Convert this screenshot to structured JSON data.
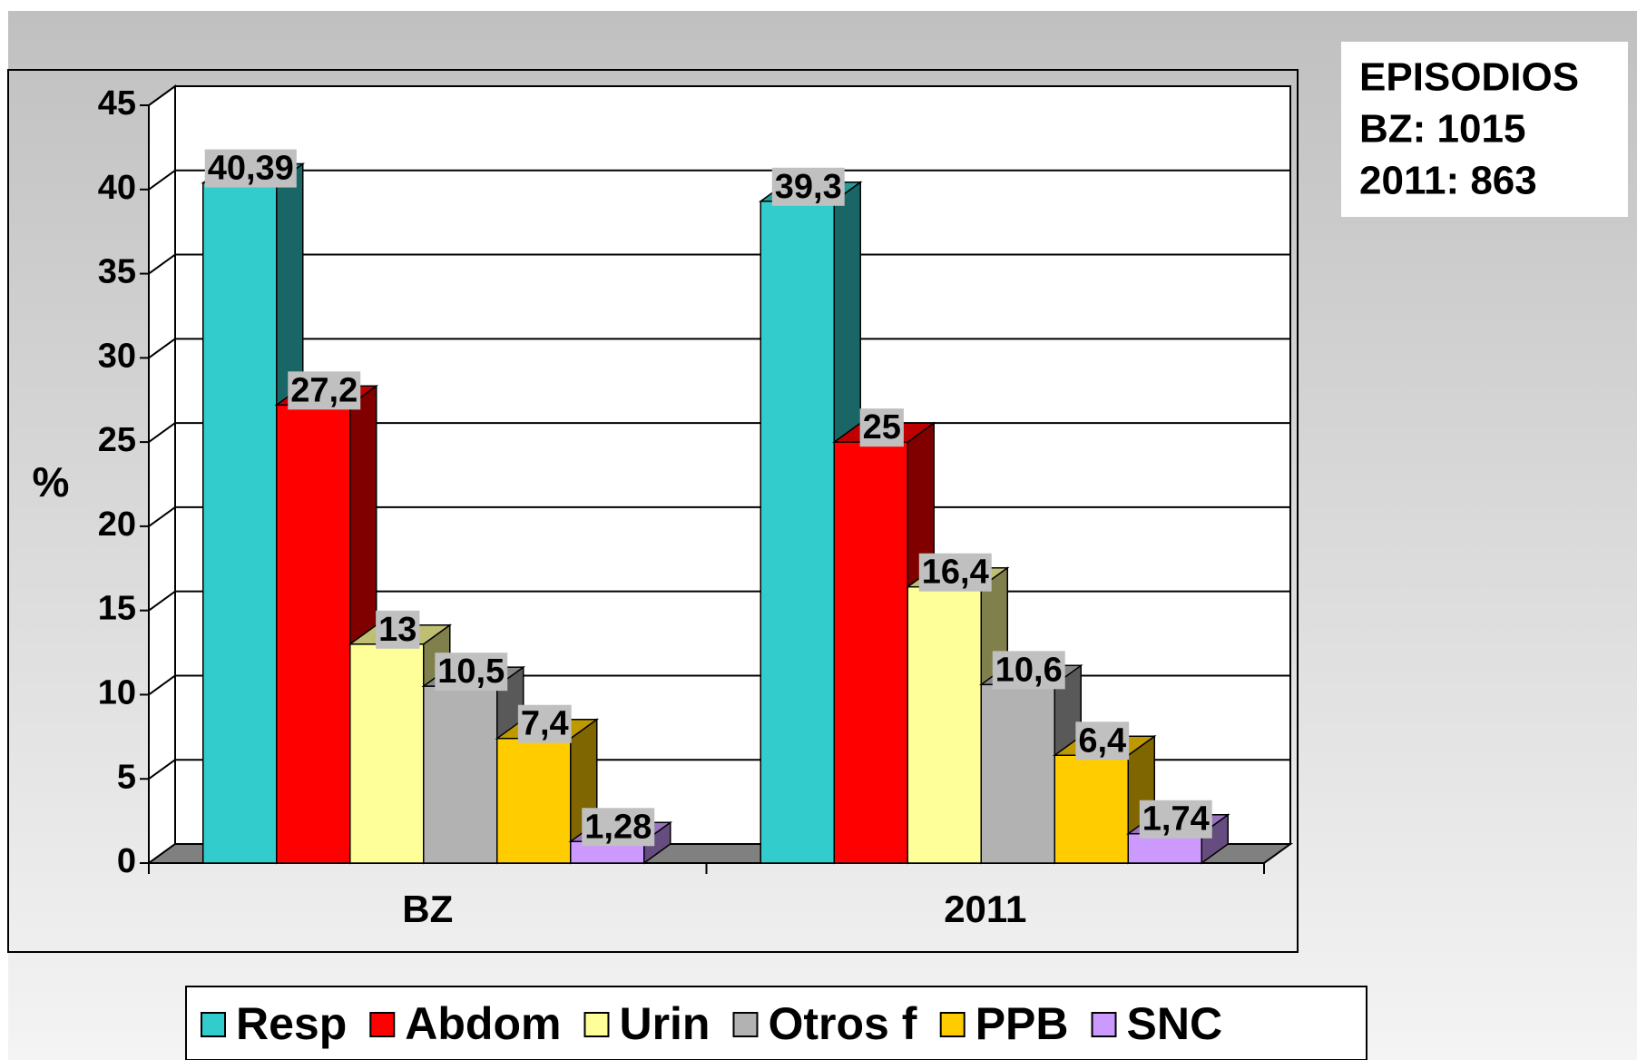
{
  "chart_data": {
    "type": "bar3d",
    "ylabel": "%",
    "annotation": [
      "EPISODIOS",
      "BZ: 1015",
      "2011: 863"
    ],
    "categories": [
      "BZ",
      "2011"
    ],
    "ylim": [
      0,
      45
    ],
    "yticks": [
      0,
      5,
      10,
      15,
      20,
      25,
      30,
      35,
      40,
      45
    ],
    "grid": true,
    "legend": "bottom",
    "series": [
      {
        "name": "Resp",
        "color": "#33CCCC",
        "values": [
          40.39,
          39.3
        ],
        "value_labels": [
          "40,39",
          "39,3"
        ]
      },
      {
        "name": "Abdom",
        "color": "#FF0000",
        "values": [
          27.2,
          25
        ],
        "value_labels": [
          "27,2",
          "25"
        ]
      },
      {
        "name": "Urin",
        "color": "#FFFF99",
        "values": [
          13,
          16.4
        ],
        "value_labels": [
          "13",
          "16,4"
        ]
      },
      {
        "name": "Otros f",
        "color": "#B2B2B2",
        "values": [
          10.5,
          10.6
        ],
        "value_labels": [
          "10,5",
          "10,6"
        ]
      },
      {
        "name": "PPB",
        "color": "#FFCC00",
        "values": [
          7.4,
          6.4
        ],
        "value_labels": [
          "7,4",
          "6,4"
        ]
      },
      {
        "name": "SNC",
        "color": "#CC99FF",
        "values": [
          1.28,
          1.74
        ],
        "value_labels": [
          "1,28",
          "1,74"
        ]
      }
    ]
  }
}
